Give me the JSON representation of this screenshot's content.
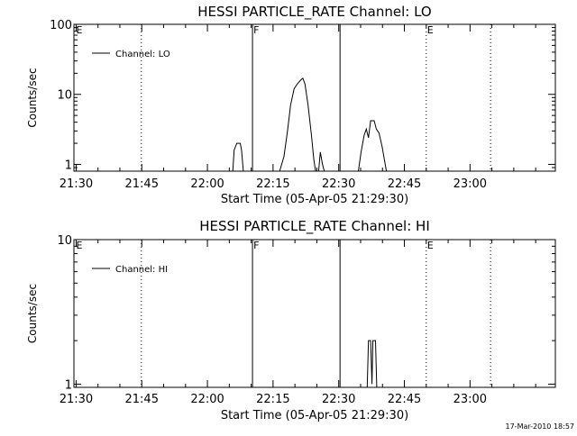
{
  "footer": {
    "timestamp": "17-Mar-2010 18:57"
  },
  "chart_data": [
    {
      "type": "line",
      "title": "HESSI PARTICLE_RATE Channel: LO",
      "xlabel": "Start Time (05-Apr-05 21:29:30)",
      "ylabel": "Counts/sec",
      "x_unit": "minutes after 21:29:30",
      "xlim": [
        0,
        110
      ],
      "yscale": "log",
      "ylim": [
        0.8,
        100
      ],
      "x_ticks": [
        {
          "x": 0.5,
          "label": "21:30"
        },
        {
          "x": 15.5,
          "label": "21:45"
        },
        {
          "x": 30.5,
          "label": "22:00"
        },
        {
          "x": 45.5,
          "label": "22:15"
        },
        {
          "x": 60.5,
          "label": "22:30"
        },
        {
          "x": 75.5,
          "label": "22:45"
        },
        {
          "x": 90.5,
          "label": "23:00"
        }
      ],
      "y_ticks": [
        {
          "y": 1,
          "label": "1"
        },
        {
          "y": 10,
          "label": "10"
        },
        {
          "y": 100,
          "label": "100"
        }
      ],
      "legend": {
        "label": "Channel: LO",
        "position": "top-left"
      },
      "markers": [
        {
          "x": 0.3,
          "label": "E",
          "style": "none"
        },
        {
          "x": 15.4,
          "label": "",
          "style": "dotted"
        },
        {
          "x": 40.8,
          "label": "F",
          "style": "solid"
        },
        {
          "x": 60.8,
          "label": "",
          "style": "solid"
        },
        {
          "x": 80.5,
          "label": "E",
          "style": "dotted"
        },
        {
          "x": 95.2,
          "label": "",
          "style": "dotted"
        }
      ],
      "series": [
        {
          "points": [
            [
              36.3,
              0.8
            ],
            [
              36.6,
              1.6
            ],
            [
              37.2,
              2.0
            ],
            [
              38.0,
              2.0
            ],
            [
              38.3,
              1.6
            ],
            [
              38.7,
              0.8
            ],
            [
              47.0,
              0.8
            ],
            [
              48.0,
              1.3
            ],
            [
              48.8,
              3.0
            ],
            [
              49.5,
              7.0
            ],
            [
              50.3,
              12.0
            ],
            [
              51.0,
              14.0
            ],
            [
              51.8,
              16.0
            ],
            [
              52.3,
              17.0
            ],
            [
              52.8,
              14.0
            ],
            [
              53.5,
              7.0
            ],
            [
              54.3,
              2.5
            ],
            [
              54.8,
              1.2
            ],
            [
              55.2,
              0.8
            ],
            [
              55.9,
              0.8
            ],
            [
              56.3,
              1.5
            ],
            [
              56.8,
              1.0
            ],
            [
              57.2,
              0.8
            ],
            [
              65.0,
              0.8
            ],
            [
              65.6,
              1.5
            ],
            [
              66.3,
              2.6
            ],
            [
              66.8,
              3.2
            ],
            [
              67.3,
              2.4
            ],
            [
              67.8,
              4.2
            ],
            [
              68.6,
              4.2
            ],
            [
              69.1,
              3.2
            ],
            [
              69.7,
              2.8
            ],
            [
              70.4,
              1.8
            ],
            [
              71.0,
              1.1
            ],
            [
              71.4,
              0.8
            ]
          ]
        }
      ]
    },
    {
      "type": "line",
      "title": "HESSI PARTICLE_RATE Channel: HI",
      "xlabel": "Start Time (05-Apr-05 21:29:30)",
      "ylabel": "Counts/sec",
      "x_unit": "minutes after 21:29:30",
      "xlim": [
        0,
        110
      ],
      "yscale": "log",
      "ylim": [
        0.95,
        10
      ],
      "x_ticks": [
        {
          "x": 0.5,
          "label": "21:30"
        },
        {
          "x": 15.5,
          "label": "21:45"
        },
        {
          "x": 30.5,
          "label": "22:00"
        },
        {
          "x": 45.5,
          "label": "22:15"
        },
        {
          "x": 60.5,
          "label": "22:30"
        },
        {
          "x": 75.5,
          "label": "22:45"
        },
        {
          "x": 90.5,
          "label": "23:00"
        }
      ],
      "y_ticks": [
        {
          "y": 1,
          "label": "1"
        },
        {
          "y": 10,
          "label": "10"
        }
      ],
      "legend": {
        "label": "Channel: HI",
        "position": "top-left"
      },
      "markers": [
        {
          "x": 0.3,
          "label": "E",
          "style": "none"
        },
        {
          "x": 15.4,
          "label": "",
          "style": "dotted"
        },
        {
          "x": 40.8,
          "label": "F",
          "style": "solid"
        },
        {
          "x": 60.8,
          "label": "",
          "style": "solid"
        },
        {
          "x": 80.5,
          "label": "E",
          "style": "dotted"
        },
        {
          "x": 95.2,
          "label": "",
          "style": "dotted"
        }
      ],
      "series": [
        {
          "points": [
            [
              67.0,
              0.95
            ],
            [
              67.3,
              2.0
            ],
            [
              67.8,
              2.0
            ],
            [
              68.1,
              1.0
            ],
            [
              68.3,
              2.0
            ],
            [
              68.9,
              2.0
            ],
            [
              69.2,
              0.95
            ]
          ]
        }
      ]
    }
  ]
}
